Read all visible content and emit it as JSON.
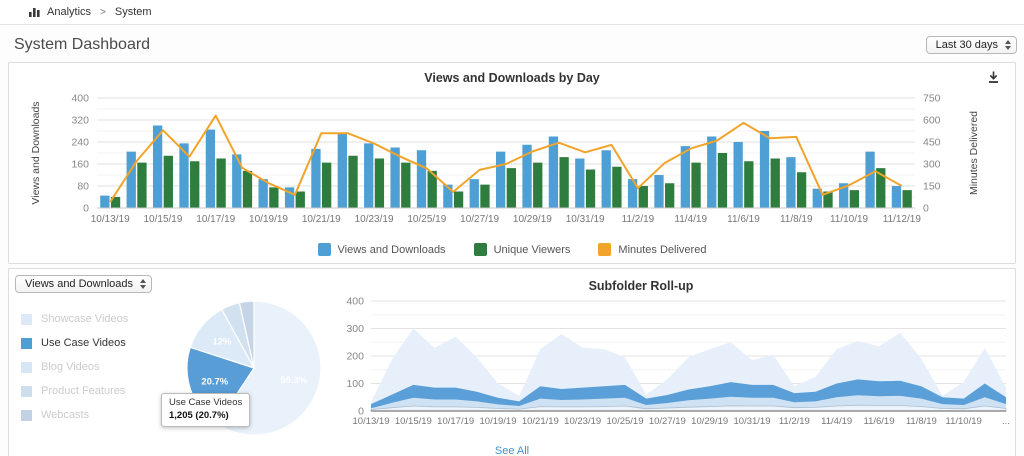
{
  "breadcrumb": {
    "app": "Analytics",
    "separator": ">",
    "page": "System"
  },
  "header": {
    "title": "System Dashboard",
    "range_select": "Last 30 days"
  },
  "subfolder_controls": {
    "metric_select": "Views and Downloads"
  },
  "colors": {
    "views_bar": "#4e9fd4",
    "unique_bar": "#2e7d3e",
    "minutes_line": "#f1a42b",
    "link_blue": "#3e94d1"
  },
  "chart_data": [
    {
      "id": "daily",
      "type": "bar",
      "title": "Views and Downloads by Day",
      "ylabel_left": "Views and Downloads",
      "ylabel_right": "Minutes Delivered",
      "ylim_left": [
        0,
        400
      ],
      "yticks_left": [
        0,
        80,
        160,
        240,
        320,
        400
      ],
      "ylim_right": [
        0,
        750
      ],
      "yticks_right": [
        0,
        150,
        300,
        450,
        600,
        750
      ],
      "grid": "on",
      "legend_position": "bottom",
      "x": [
        "10/13/19",
        "10/14/19",
        "10/15/19",
        "10/16/19",
        "10/17/19",
        "10/18/19",
        "10/19/19",
        "10/20/19",
        "10/21/19",
        "10/22/19",
        "10/23/19",
        "10/24/19",
        "10/25/19",
        "10/26/19",
        "10/27/19",
        "10/28/19",
        "10/29/19",
        "10/30/19",
        "10/31/19",
        "11/1/19",
        "11/2/19",
        "11/3/19",
        "11/4/19",
        "11/5/19",
        "11/6/19",
        "11/7/19",
        "11/8/19",
        "11/9/19",
        "11/10/19",
        "11/11/19",
        "11/12/19"
      ],
      "x_tick_labels": [
        "10/13/19",
        "10/15/19",
        "10/17/19",
        "10/19/19",
        "10/21/19",
        "10/23/19",
        "10/25/19",
        "10/27/19",
        "10/29/19",
        "10/31/19",
        "11/2/19",
        "11/4/19",
        "11/6/19",
        "11/8/19",
        "11/10/19",
        "11/12/19"
      ],
      "series": [
        {
          "name": "Views and Downloads",
          "type": "bar",
          "axis": "left",
          "color": "#4e9fd4",
          "values": [
            45,
            205,
            300,
            235,
            285,
            195,
            105,
            75,
            215,
            270,
            235,
            220,
            210,
            85,
            105,
            205,
            230,
            260,
            180,
            210,
            105,
            120,
            225,
            260,
            240,
            280,
            185,
            70,
            90,
            205,
            80
          ]
        },
        {
          "name": "Unique Viewers",
          "type": "bar",
          "axis": "left",
          "color": "#2e7d3e",
          "values": [
            40,
            165,
            190,
            170,
            180,
            135,
            75,
            60,
            165,
            190,
            180,
            165,
            135,
            60,
            85,
            145,
            165,
            185,
            140,
            150,
            80,
            90,
            165,
            200,
            170,
            180,
            130,
            60,
            65,
            145,
            65
          ]
        },
        {
          "name": "Minutes Delivered",
          "type": "line",
          "axis": "right",
          "color": "#f1a42b",
          "values": [
            40,
            320,
            530,
            350,
            630,
            275,
            170,
            90,
            510,
            510,
            440,
            350,
            270,
            110,
            260,
            300,
            385,
            445,
            380,
            430,
            135,
            305,
            405,
            460,
            580,
            475,
            485,
            90,
            155,
            250,
            150
          ]
        }
      ]
    },
    {
      "id": "subfolder_pie",
      "type": "pie",
      "selected": "Use Case Videos",
      "tooltip": {
        "title": "Use Case Videos",
        "value": "1,205 (20.7%)"
      },
      "slices": [
        {
          "label": "Showcase Videos",
          "pct": 59.3,
          "pct_label": "59.3%",
          "color": "#e9f1fb",
          "legend_color": "#dde9f7",
          "active": false
        },
        {
          "label": "Use Case Videos",
          "pct": 20.7,
          "pct_label": "20.7%",
          "color": "#589dd6",
          "legend_color": "#4e9fd4",
          "active": true
        },
        {
          "label": "Blog Videos",
          "pct": 12.0,
          "pct_label": "12%",
          "color": "#dce9f6",
          "legend_color": "#d6e6f5",
          "active": false
        },
        {
          "label": "Product Features",
          "pct": 4.5,
          "pct_label": "",
          "color": "#d2e1f0",
          "legend_color": "#cddeee",
          "active": false
        },
        {
          "label": "Webcasts",
          "pct": 3.5,
          "pct_label": "",
          "color": "#c6d5e6",
          "legend_color": "#c2d2e4",
          "active": false
        }
      ]
    },
    {
      "id": "subfolder_rollup",
      "type": "area",
      "title": "Subfolder Roll-up",
      "see_all": "See All",
      "ylim": [
        0,
        400
      ],
      "yticks": [
        0,
        100,
        200,
        300,
        400
      ],
      "grid": "on",
      "x_tick_labels": [
        "10/13/19",
        "10/15/19",
        "10/17/19",
        "10/19/19",
        "10/21/19",
        "10/23/19",
        "10/25/19",
        "10/27/19",
        "10/29/19",
        "10/31/19",
        "11/2/19",
        "11/4/19",
        "11/6/19",
        "11/8/19",
        "11/10/19",
        "..."
      ],
      "series": [
        {
          "name": "layer-1",
          "color": "#e7f0fa",
          "values": [
            30,
            190,
            300,
            230,
            270,
            195,
            100,
            55,
            225,
            280,
            230,
            225,
            195,
            60,
            115,
            195,
            225,
            250,
            185,
            205,
            90,
            125,
            225,
            255,
            235,
            285,
            190,
            55,
            105,
            230,
            85
          ]
        },
        {
          "name": "layer-2",
          "color": "#5b9fd8",
          "values": [
            25,
            60,
            95,
            85,
            85,
            70,
            48,
            35,
            90,
            80,
            85,
            90,
            95,
            45,
            58,
            78,
            90,
            105,
            95,
            95,
            65,
            70,
            100,
            115,
            108,
            110,
            90,
            50,
            45,
            100,
            50
          ]
        },
        {
          "name": "layer-3",
          "color": "#cfe2f3",
          "values": [
            10,
            30,
            48,
            42,
            42,
            35,
            24,
            18,
            45,
            40,
            42,
            45,
            48,
            22,
            29,
            39,
            45,
            52,
            48,
            48,
            32,
            35,
            50,
            57,
            54,
            55,
            45,
            25,
            22,
            50,
            25
          ]
        },
        {
          "name": "layer-4",
          "color": "#edf3fa",
          "values": [
            5,
            12,
            18,
            15,
            15,
            13,
            9,
            7,
            16,
            15,
            15,
            16,
            18,
            8,
            11,
            14,
            16,
            19,
            18,
            18,
            12,
            13,
            18,
            21,
            20,
            20,
            16,
            9,
            8,
            18,
            9
          ]
        }
      ]
    }
  ]
}
